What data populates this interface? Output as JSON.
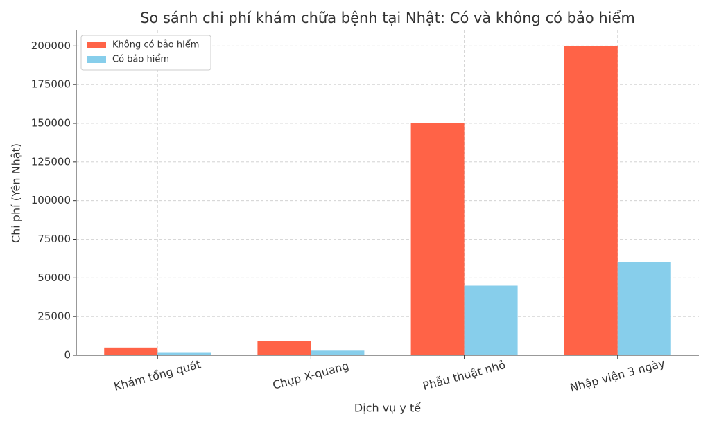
{
  "chart_data": {
    "type": "bar",
    "title": "So sánh chi phí khám chữa bệnh tại Nhật: Có và không có bảo hiểm",
    "x_label": "Dịch vụ y tế",
    "y_label": "Chi phí (Yên Nhật)",
    "categories": [
      "Khám tổng quát",
      "Chụp X-quang",
      "Phẫu thuật nhỏ",
      "Nhập viện 3 ngày"
    ],
    "series": [
      {
        "name": "Không có bảo hiểm",
        "color": "#ff6347",
        "values": [
          5000,
          9000,
          150000,
          200000
        ]
      },
      {
        "name": "Có bảo hiểm",
        "color": "#87ceeb",
        "values": [
          2000,
          3000,
          45000,
          60000
        ]
      }
    ],
    "ylim": [
      0,
      210000
    ],
    "yticks": [
      0,
      25000,
      50000,
      75000,
      100000,
      125000,
      150000,
      175000,
      200000
    ],
    "grid": true,
    "legend": "upper-left"
  }
}
